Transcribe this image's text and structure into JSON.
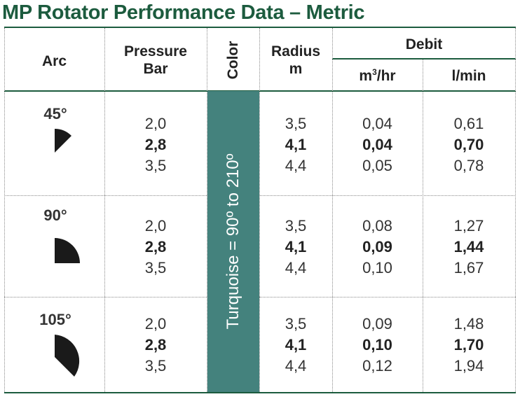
{
  "title": "MP Rotator Performance Data – Metric",
  "headers": {
    "arc": "Arc",
    "pressure_line1": "Pressure",
    "pressure_line2": "Bar",
    "color": "Color",
    "radius_line1": "Radius",
    "radius_line2": "m",
    "debit": "Debit",
    "m3hr_prefix": "m",
    "m3hr_sup": "3",
    "m3hr_suffix": "/hr",
    "lmin": "l/min"
  },
  "color_band": {
    "label": "Turquoise = 90º to 210º",
    "color": "#44827d"
  },
  "accent_color": "#1c5b3e",
  "rows": [
    {
      "arc": "45°",
      "icon": "quarter-sector-45-icon",
      "pressure": [
        "2,0",
        "2,8",
        "3,5"
      ],
      "radius": [
        "3,5",
        "4,1",
        "4,4"
      ],
      "m3hr": [
        "0,04",
        "0,04",
        "0,05"
      ],
      "lmin": [
        "0,61",
        "0,70",
        "0,78"
      ]
    },
    {
      "arc": "90°",
      "icon": "quarter-circle-90-icon",
      "pressure": [
        "2,0",
        "2,8",
        "3,5"
      ],
      "radius": [
        "3,5",
        "4,1",
        "4,4"
      ],
      "m3hr": [
        "0,08",
        "0,09",
        "0,10"
      ],
      "lmin": [
        "1,27",
        "1,44",
        "1,67"
      ]
    },
    {
      "arc": "105°",
      "icon": "sector-105-icon",
      "pressure": [
        "2,0",
        "2,8",
        "3,5"
      ],
      "radius": [
        "3,5",
        "4,1",
        "4,4"
      ],
      "m3hr": [
        "0,09",
        "0,10",
        "0,12"
      ],
      "lmin": [
        "1,48",
        "1,70",
        "1,94"
      ]
    }
  ]
}
